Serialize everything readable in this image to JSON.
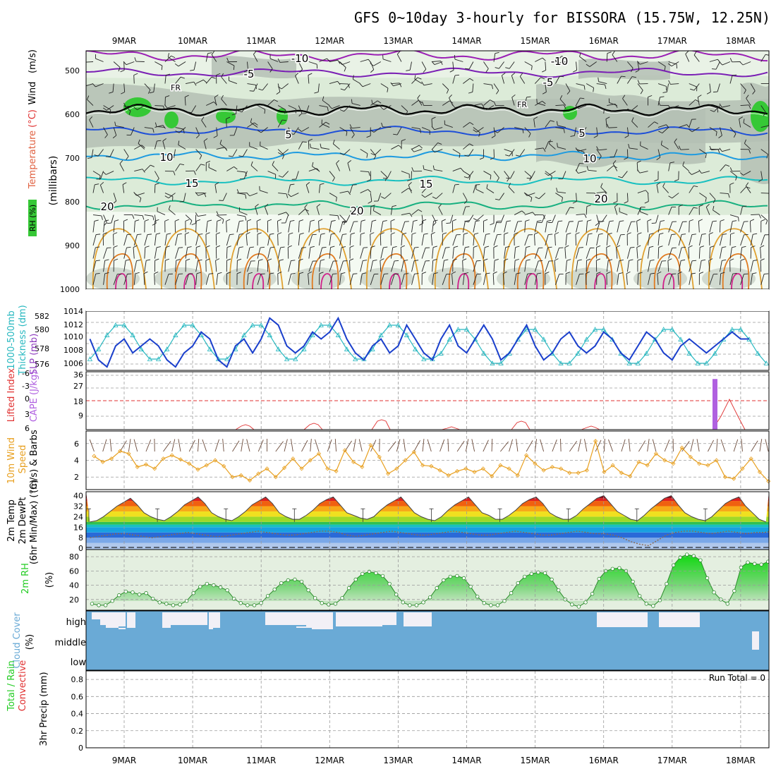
{
  "title": "GFS 0~10day 3-hourly for BISSORA (15.75W, 12.25N)",
  "dates": [
    "9MAR",
    "10MAR",
    "11MAR",
    "12MAR",
    "13MAR",
    "14MAR",
    "15MAR",
    "16MAR",
    "17MAR",
    "18MAR"
  ],
  "colors": {
    "rh_green": "#36c836",
    "rh_gray": "#b4c0b4",
    "rh_light": "#dcebd8",
    "t_neg10": "#9a1fb4",
    "t_neg5": "#7a1fb4",
    "t_fr": "#000000",
    "t_5": "#1e4fd8",
    "t_10": "#1e9be0",
    "t_15": "#18c0c0",
    "t_20": "#18b080",
    "t_warm": "#e0a030",
    "slp": "#1a3fcc",
    "thickness": "#28b8c0",
    "cape": "#b060e0",
    "li": "#e03030",
    "wind_speed": "#e8a020",
    "dewpt": "#8a6a50",
    "rh2m": "#22cc22",
    "cloud": "#6aaad6"
  },
  "panels": [
    {
      "id": "upper-air",
      "labels": [
        {
          "text": "RH (%)",
          "color": "#000000"
        },
        {
          "text": "Temperature",
          "color": "#e06040"
        },
        {
          "text": "(°C)",
          "color": "#e03030"
        },
        {
          "text": "Wind",
          "color": "#000000"
        },
        {
          "text": "(m/s)",
          "color": "#000000"
        },
        {
          "text": "(millibars)",
          "color": "#000000"
        }
      ],
      "ticks": [
        "500",
        "600",
        "700",
        "800",
        "900",
        "1000"
      ]
    },
    {
      "id": "slp",
      "labels": [
        {
          "text": "1000-500mb",
          "color": "#28b8c0"
        },
        {
          "text": "Thickness (dm)",
          "color": "#28b8c0"
        },
        {
          "text": "SLP (mb)",
          "color": "#9040c0"
        }
      ],
      "ticks_left": [
        "582",
        "580",
        "578",
        "576"
      ],
      "ticks_right": [
        "1014",
        "1012",
        "1010",
        "1008",
        "1006"
      ]
    },
    {
      "id": "cape",
      "labels": [
        {
          "text": "Lifted Index",
          "color": "#e03030"
        },
        {
          "text": "CAPE (J/kg)",
          "color": "#b060e0"
        }
      ],
      "ticks_li": [
        "-6",
        "-3",
        "0",
        "3",
        "6"
      ],
      "ticks_cape": [
        "36",
        "27",
        "18",
        "9"
      ]
    },
    {
      "id": "wind10m",
      "labels": [
        {
          "text": "10m Wind",
          "color": "#e8a020"
        },
        {
          "text": "Speed",
          "color": "#e8a020"
        },
        {
          "text": "(m/s) & Barbs",
          "color": "#000000"
        }
      ],
      "ticks": [
        "6",
        "4",
        "2"
      ]
    },
    {
      "id": "temp2m",
      "labels": [
        {
          "text": "2m Temp",
          "color": "#000000"
        },
        {
          "text": "2m DewPt",
          "color": "#000000"
        },
        {
          "text": "(6hr Min/Max) (°C)",
          "color": "#000000"
        }
      ],
      "ticks": [
        "40",
        "32",
        "24",
        "16",
        "8",
        "0"
      ]
    },
    {
      "id": "rh2m",
      "labels": [
        {
          "text": "2m RH",
          "color": "#22cc22"
        },
        {
          "text": "(%)",
          "color": "#000000"
        }
      ],
      "ticks": [
        "80",
        "60",
        "40",
        "20"
      ]
    },
    {
      "id": "cloud",
      "labels": [
        {
          "text": "Cloud Cover",
          "color": "#6aaad6"
        },
        {
          "text": "(%)",
          "color": "#000000"
        }
      ],
      "ticks": [
        "high",
        "middle",
        "low"
      ]
    },
    {
      "id": "precip",
      "labels": [
        {
          "text": "Total / Rain",
          "color": "#22cc22"
        },
        {
          "text": "Convective",
          "color": "#e03030"
        },
        {
          "text": "3hr Precip (mm)",
          "color": "#000000"
        }
      ],
      "ticks": [
        "0.8",
        "0.6",
        "0.4",
        "0.2",
        "0"
      ],
      "run_total": "Run Total = 0"
    }
  ],
  "contour_labels": [
    {
      "text": "-10",
      "color": "#9a1fb4"
    },
    {
      "text": "-10",
      "color": "#9a1fb4"
    },
    {
      "text": "-5",
      "color": "#7a1fb4"
    },
    {
      "text": "-5",
      "color": "#7a1fb4"
    },
    {
      "text": "FR",
      "color": "#000000"
    },
    {
      "text": "FR",
      "color": "#000000"
    },
    {
      "text": "5",
      "color": "#1e4fd8"
    },
    {
      "text": "5",
      "color": "#1e4fd8"
    },
    {
      "text": "10",
      "color": "#1e9be0"
    },
    {
      "text": "10",
      "color": "#1e9be0"
    },
    {
      "text": "15",
      "color": "#18c0c0"
    },
    {
      "text": "15",
      "color": "#18c0c0"
    },
    {
      "text": "20",
      "color": "#18b080"
    },
    {
      "text": "20",
      "color": "#18b080"
    },
    {
      "text": "20",
      "color": "#18b080"
    }
  ],
  "chart_data": {
    "type": "line",
    "x": "3-hourly steps, 8 MAR 12Z to 18 MAR 06Z",
    "slp_mb": [
      1010,
      1007,
      1006,
      1009,
      1010,
      1008,
      1009,
      1010,
      1009,
      1007,
      1006,
      1008,
      1009,
      1011,
      1010,
      1007,
      1006,
      1009,
      1010,
      1008,
      1010,
      1013,
      1012,
      1009,
      1008,
      1009,
      1011,
      1010,
      1011,
      1013,
      1010,
      1008,
      1007,
      1009,
      1010,
      1008,
      1009,
      1012,
      1010,
      1008,
      1007,
      1010,
      1012,
      1009,
      1008,
      1010,
      1012,
      1010,
      1007,
      1008,
      1010,
      1012,
      1009,
      1007,
      1008,
      1010,
      1011,
      1009,
      1008,
      1009,
      1011,
      1010,
      1008,
      1007,
      1009,
      1011,
      1010,
      1008,
      1007,
      1009,
      1010,
      1009,
      1008,
      1009,
      1010,
      1011,
      1010,
      1010
    ],
    "cape_jkg": {
      "at": "17MAR 18Z",
      "value": 35
    },
    "wind10m_ms": [
      4.5,
      3.8,
      4.2,
      5.1,
      4.8,
      3.2,
      3.5,
      3.0,
      4.2,
      4.6,
      4.1,
      3.6,
      2.9,
      3.4,
      4.0,
      3.3,
      2.0,
      2.2,
      1.6,
      2.4,
      3.0,
      2.0,
      3.1,
      4.2,
      3.0,
      4.0,
      4.8,
      3.0,
      2.7,
      5.2,
      3.8,
      3.2,
      5.8,
      4.4,
      2.4,
      3.0,
      4.0,
      5.0,
      3.4,
      3.3,
      2.8,
      2.2,
      2.7,
      3.0,
      2.6,
      3.0,
      2.1,
      3.4,
      3.0,
      2.2,
      4.6,
      3.6,
      2.8,
      3.2,
      3.0,
      2.5,
      2.5,
      2.8,
      6.3,
      2.6,
      3.4,
      2.5,
      2.1,
      3.8,
      3.4,
      4.8,
      4.0,
      3.6,
      5.5,
      4.4,
      3.6,
      3.4,
      4.0,
      2.0,
      1.8,
      3.0,
      4.2,
      2.6,
      1.5
    ],
    "temp2m_c": [
      20,
      21,
      24,
      28,
      32,
      35,
      38,
      33,
      27,
      24,
      22,
      21,
      24,
      28,
      33,
      36,
      39,
      34,
      27,
      24,
      22,
      21,
      24,
      28,
      33,
      36,
      39,
      34,
      27,
      24,
      22,
      22,
      25,
      29,
      34,
      37,
      39,
      33,
      27,
      25,
      23,
      22,
      24,
      29,
      33,
      36,
      39,
      33,
      27,
      24,
      22,
      21,
      24,
      29,
      33,
      36,
      39,
      33,
      27,
      25,
      22,
      22,
      25,
      29,
      34,
      37,
      39,
      34,
      27,
      24,
      22,
      22,
      25,
      30,
      34,
      38,
      40,
      34,
      28,
      25,
      22,
      21,
      25,
      30,
      34,
      38,
      40,
      33,
      27,
      24,
      22,
      21,
      24,
      29,
      34,
      37,
      39,
      32,
      27,
      22,
      20
    ],
    "dewpt2m_c": [
      8,
      9,
      10,
      11,
      11,
      10,
      9,
      8,
      9,
      10,
      11,
      12,
      11,
      10,
      9,
      9,
      10,
      11,
      12,
      13,
      12,
      11,
      10,
      10,
      11,
      12,
      13,
      13,
      12,
      10,
      9,
      10,
      11,
      12,
      13,
      12,
      11,
      10,
      10,
      11,
      12,
      13,
      12,
      11,
      10,
      10,
      11,
      12,
      13,
      12,
      11,
      10,
      10,
      11,
      12,
      13,
      12,
      11,
      11,
      10,
      8,
      5,
      3,
      2,
      6,
      10,
      12,
      13,
      13,
      12,
      11,
      12,
      13,
      12,
      11,
      12,
      12,
      13
    ],
    "rh2m_pct": [
      14,
      12,
      12,
      18,
      26,
      31,
      30,
      27,
      29,
      21,
      16,
      14,
      12,
      13,
      18,
      29,
      38,
      42,
      40,
      37,
      33,
      21,
      15,
      12,
      12,
      15,
      25,
      34,
      43,
      47,
      48,
      45,
      33,
      22,
      15,
      13,
      14,
      22,
      36,
      48,
      56,
      59,
      57,
      53,
      42,
      27,
      16,
      12,
      12,
      16,
      23,
      36,
      47,
      52,
      53,
      50,
      38,
      24,
      15,
      12,
      12,
      18,
      29,
      43,
      52,
      56,
      58,
      57,
      48,
      33,
      20,
      13,
      10,
      16,
      28,
      49,
      60,
      63,
      64,
      60,
      45,
      25,
      14,
      11,
      19,
      42,
      68,
      79,
      83,
      81,
      75,
      50,
      30,
      20,
      14,
      32,
      65,
      72,
      70,
      69,
      73
    ],
    "cloud_high": "mostly overcast, gaps on 9MAR, 10MAR, 11-12MAR",
    "precip_run_total_mm": 0
  }
}
